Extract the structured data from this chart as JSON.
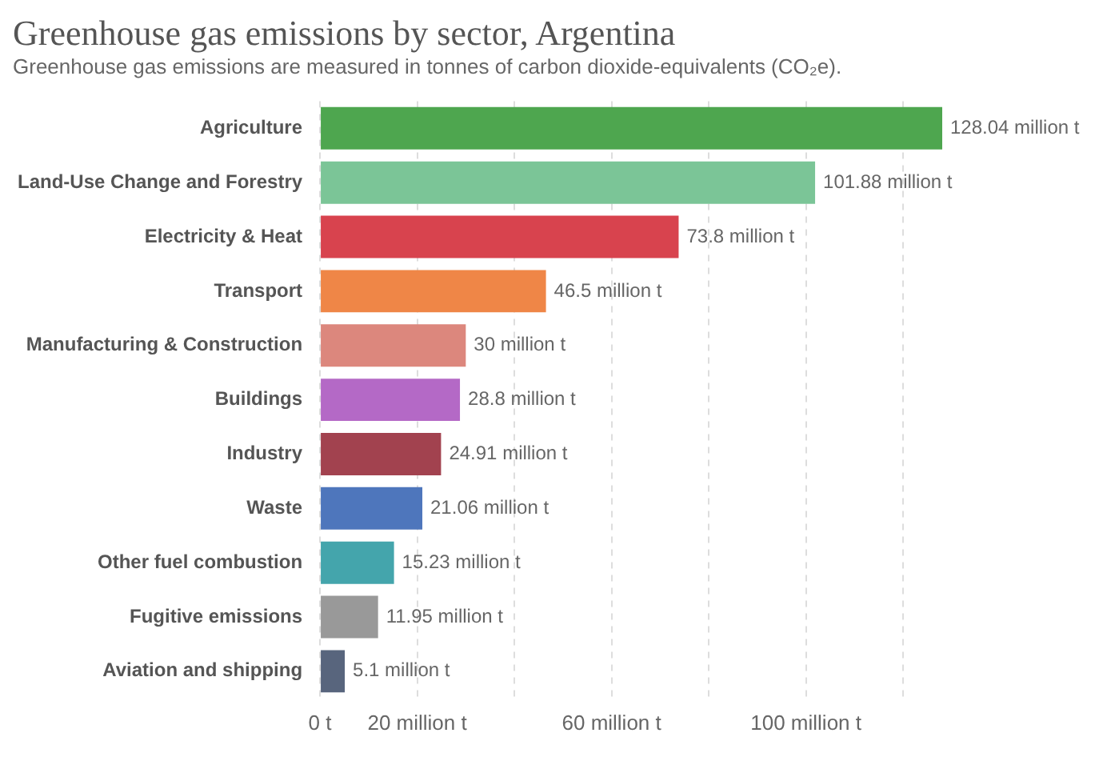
{
  "chart_data": {
    "type": "bar",
    "orientation": "horizontal",
    "title": "Greenhouse gas emissions by sector, Argentina",
    "subtitle": "Greenhouse gas emissions are measured in tonnes of carbon dioxide-equivalents (CO₂e).",
    "categories": [
      "Agriculture",
      "Land-Use Change and Forestry",
      "Electricity & Heat",
      "Transport",
      "Manufacturing & Construction",
      "Buildings",
      "Industry",
      "Waste",
      "Other fuel combustion",
      "Fugitive emissions",
      "Aviation and shipping"
    ],
    "values": [
      128.04,
      101.88,
      73.8,
      46.5,
      30,
      28.8,
      24.91,
      21.06,
      15.23,
      11.95,
      5.1
    ],
    "colors": [
      "#4ea64f",
      "#7bc597",
      "#d8434e",
      "#ef8647",
      "#dc877d",
      "#b469c6",
      "#a2424f",
      "#4e76bc",
      "#44a5ac",
      "#999999",
      "#58657d"
    ],
    "value_labels": [
      "128.04 million t",
      "101.88 million t",
      "73.8 million t",
      "46.5 million t",
      "30 million t",
      "28.8 million t",
      "24.91 million t",
      "21.06 million t",
      "15.23 million t",
      "11.95 million t",
      "5.1 million t"
    ],
    "xlim": [
      0,
      128.04
    ],
    "xticks": [
      {
        "value": 0,
        "label": "0 t"
      },
      {
        "value": 20,
        "label": "20 million t"
      },
      {
        "value": 40,
        "label": null
      },
      {
        "value": 60,
        "label": "60 million t"
      },
      {
        "value": 80,
        "label": null
      },
      {
        "value": 100,
        "label": "100 million t"
      },
      {
        "value": 120,
        "label": null
      }
    ],
    "grid": "x",
    "legend": false
  }
}
